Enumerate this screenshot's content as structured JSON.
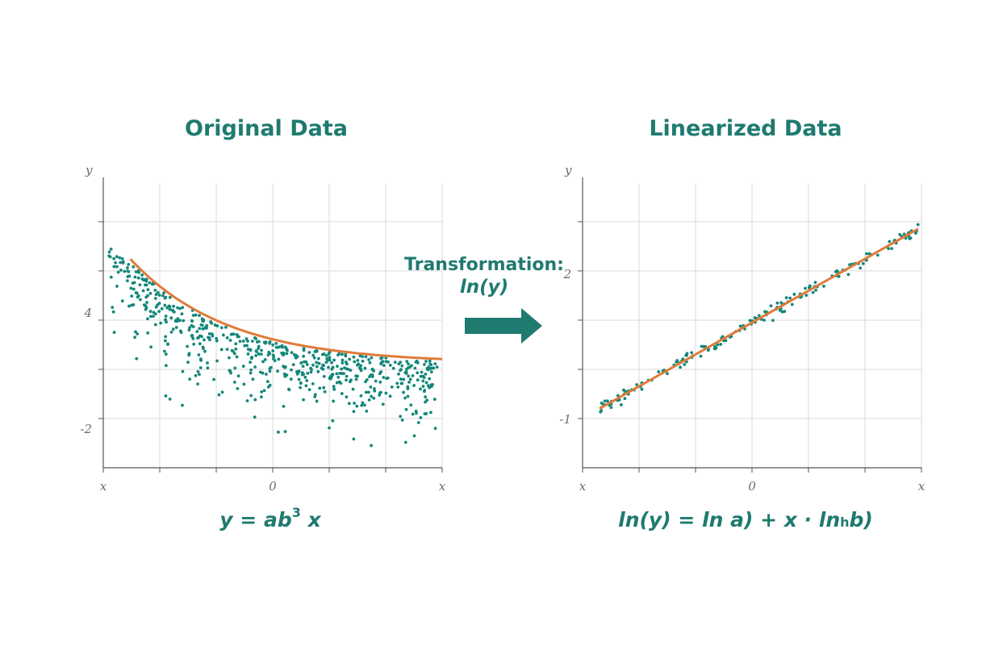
{
  "colors": {
    "accent": "#1f7a70",
    "dots": "#14877a",
    "curve": "#e07b39",
    "grid": "#d9d9d9",
    "axis": "#555555"
  },
  "transformation": {
    "label": "Transformation:",
    "func": "ln(y)",
    "arrow_icon": "right-arrow-icon"
  },
  "equations": {
    "left": {
      "lhs": "y = ab",
      "sup": "3",
      "rhs": " x"
    },
    "right": {
      "part1": "ln(y) = ln a) + x · ln",
      "sub": "h",
      "part2": "b)"
    }
  },
  "chart_data": [
    {
      "type": "scatter",
      "title": "Original Data",
      "xlabel": "x",
      "ylabel": "y",
      "x_ticks": [
        {
          "pos": -1,
          "label": "x"
        },
        {
          "pos": 0,
          "label": "0"
        },
        {
          "pos": 1,
          "label": "x"
        }
      ],
      "y_ticks": [
        {
          "pos": -2,
          "label": "-2"
        },
        {
          "pos": 4,
          "label": "4"
        },
        {
          "pos": 10,
          "label": ""
        }
      ],
      "xlim": [
        -1,
        1
      ],
      "ylim": [
        -4,
        11
      ],
      "grid": true,
      "fit_curve": {
        "type": "exponential_decay",
        "description": "upper envelope curve"
      },
      "series": []
    },
    {
      "type": "scatter",
      "title": "Linearized Data",
      "xlabel": "x",
      "ylabel": "y",
      "x_ticks": [
        {
          "pos": -1,
          "label": "x"
        },
        {
          "pos": 0,
          "label": "0"
        },
        {
          "pos": 1,
          "label": "x"
        }
      ],
      "y_ticks": [
        {
          "pos": -1,
          "label": "-1"
        },
        {
          "pos": 2,
          "label": "2"
        },
        {
          "pos": 5,
          "label": ""
        }
      ],
      "xlim": [
        -1,
        1
      ],
      "ylim": [
        -2,
        4
      ],
      "grid": true,
      "fit_line": {
        "slope": 2.1,
        "intercept": 1.0
      },
      "series": []
    }
  ]
}
